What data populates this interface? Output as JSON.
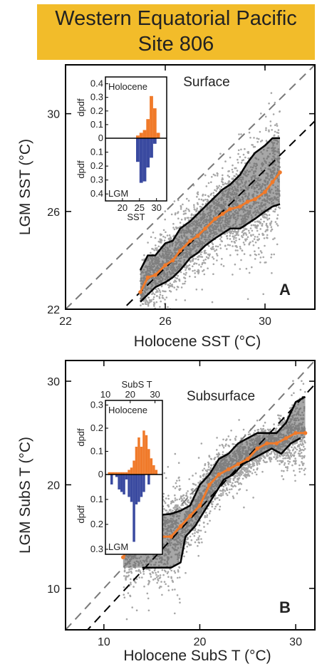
{
  "header": {
    "line1": "Western Equatorial Pacific",
    "line2": "Site 806",
    "color": "#f2bc2a"
  },
  "colors": {
    "scatter": "#a6a6a6",
    "band": "#5f5f5f",
    "median": "#f07a2a",
    "holocene_bars": "#f07a2a",
    "lgm_bars": "#3a4aa0",
    "bounds": "#000000",
    "one_to_one": "#7a7a7a",
    "mean_offset": "#000000"
  },
  "chart_data": [
    {
      "type": "scatter",
      "panel_label": "A",
      "title": "Surface",
      "xlabel": "Holocene SST (°C)",
      "ylabel": "LGM SST (°C)",
      "xlim": [
        22,
        32
      ],
      "ylim": [
        22,
        32
      ],
      "xticks": [
        "22",
        "26",
        "30"
      ],
      "yticks": [
        "22",
        "26",
        "30"
      ],
      "grid": false,
      "reference_lines": {
        "one_to_one": {
          "style": "dashed gray",
          "slope": 1,
          "intercept": 0
        },
        "offset": {
          "style": "dashed black",
          "slope": 1,
          "intercept": -2.3
        }
      },
      "median": {
        "x": [
          25.0,
          25.3,
          25.6,
          26.0,
          26.3,
          26.6,
          27.0,
          27.3,
          27.6,
          28.0,
          28.3,
          28.6,
          29.0,
          29.3,
          29.6,
          30.0,
          30.3,
          30.6
        ],
        "y": [
          22.7,
          23.3,
          23.4,
          23.8,
          24.0,
          24.4,
          24.8,
          25.0,
          25.3,
          25.7,
          25.9,
          26.1,
          26.2,
          26.4,
          26.5,
          26.8,
          27.2,
          27.6
        ]
      },
      "upper_bound": {
        "x": [
          25.0,
          25.3,
          25.6,
          26.0,
          26.3,
          26.6,
          27.0,
          27.3,
          27.6,
          28.0,
          28.3,
          28.6,
          29.0,
          29.3,
          29.6,
          30.0,
          30.3,
          30.6
        ],
        "y": [
          23.6,
          24.2,
          24.2,
          24.7,
          24.8,
          25.3,
          25.6,
          25.9,
          26.2,
          26.6,
          26.9,
          27.1,
          27.5,
          28.0,
          28.4,
          28.7,
          29.0,
          29.0
        ]
      },
      "lower_bound": {
        "x": [
          25.0,
          25.3,
          25.6,
          26.0,
          26.3,
          26.6,
          27.0,
          27.3,
          27.6,
          28.0,
          28.3,
          28.6,
          29.0,
          29.3,
          29.6,
          30.0,
          30.3,
          30.6
        ],
        "y": [
          22.3,
          22.6,
          22.9,
          23.1,
          23.3,
          23.6,
          24.1,
          24.3,
          24.6,
          24.9,
          25.1,
          25.3,
          25.3,
          25.5,
          25.7,
          26.0,
          26.2,
          26.3
        ]
      },
      "inset": {
        "title_top": "Holocene",
        "title_bottom": "LGM",
        "xlabel": "SST",
        "ylabel": "dpdf",
        "xticks": [
          "20",
          "25",
          "30"
        ],
        "yticks_top": [
          "0",
          "0.1",
          "0.2",
          "0.3",
          "0.4"
        ],
        "yticks_bottom": [
          "0.1",
          "0.2",
          "0.3",
          "0.4"
        ],
        "xlim": [
          15,
          33
        ],
        "ylim": [
          0,
          0.45
        ],
        "bin_edges": [
          24,
          25,
          26,
          27,
          28,
          29,
          30,
          31
        ],
        "holocene": [
          0.02,
          0.04,
          0.06,
          0.14,
          0.31,
          0.22,
          0.04
        ],
        "lgm": [
          0.17,
          0.32,
          0.31,
          0.21,
          0.14,
          0.04,
          0.0
        ]
      }
    },
    {
      "type": "scatter",
      "panel_label": "B",
      "title": "Subsurface",
      "xlabel": "Holocene SubS T (°C)",
      "ylabel": "LGM SubS T (°C)",
      "xlim": [
        6,
        32
      ],
      "ylim": [
        6,
        32
      ],
      "xticks": [
        "10",
        "20",
        "30"
      ],
      "yticks": [
        "10",
        "20",
        "30"
      ],
      "grid": false,
      "reference_lines": {
        "one_to_one": {
          "style": "dashed gray",
          "slope": 1,
          "intercept": 0
        },
        "offset": {
          "style": "dashed black",
          "slope": 1,
          "intercept": -2.3
        }
      },
      "median": {
        "x": [
          12.0,
          13.0,
          14.0,
          15.0,
          16.0,
          17.0,
          18.0,
          19.0,
          20.0,
          21.0,
          22.0,
          23.0,
          24.0,
          25.0,
          26.0,
          27.0,
          28.0,
          29.0,
          30.0,
          31.0
        ],
        "y": [
          13.0,
          14.5,
          15.0,
          15.0,
          15.0,
          15.0,
          16.0,
          17.0,
          18.0,
          20.0,
          21.0,
          21.5,
          22.0,
          22.5,
          23.5,
          24.0,
          24.0,
          24.5,
          25.0,
          25.0
        ]
      },
      "upper_bound": {
        "x": [
          13.0,
          15.0,
          17.0,
          18.0,
          19.0,
          20.0,
          21.0,
          22.0,
          23.0,
          24.0,
          25.0,
          26.0,
          27.0,
          28.0,
          29.0,
          30.0,
          31.0
        ],
        "y": [
          17.0,
          17.0,
          17.2,
          17.5,
          18.0,
          20.0,
          21.0,
          22.5,
          23.0,
          24.0,
          24.5,
          25.0,
          25.0,
          25.0,
          26.0,
          28.0,
          28.5
        ]
      },
      "lower_bound": {
        "x": [
          14.0,
          16.0,
          17.0,
          18.0,
          18.5,
          19.5,
          20.5,
          21.5,
          22.5,
          23.5,
          24.5,
          25.5,
          26.5,
          27.5,
          28.5,
          29.5,
          30.5
        ],
        "y": [
          12.0,
          12.0,
          12.0,
          12.5,
          15.0,
          16.0,
          17.5,
          19.0,
          20.5,
          21.0,
          22.0,
          22.5,
          23.0,
          23.5,
          23.0,
          24.0,
          24.5
        ]
      },
      "inset": {
        "title_top": "Holocene",
        "title_bottom": "LGM",
        "xlabel": "SubS T",
        "ylabel": "dpdf",
        "xticks": [
          "10",
          "20",
          "30"
        ],
        "yticks_top": [
          "0",
          "0.1",
          "0.2",
          "0.3"
        ],
        "yticks_bottom": [
          "0.1",
          "0.2",
          "0.3"
        ],
        "xlim": [
          10,
          33
        ],
        "ylim": [
          0,
          0.32
        ],
        "bin_edges": [
          11,
          12,
          13,
          14,
          15,
          16,
          17,
          18,
          19,
          20,
          21,
          22,
          23,
          24,
          25,
          26,
          27,
          28,
          29,
          30,
          31
        ],
        "holocene": [
          0.01,
          0.01,
          0.01,
          0.01,
          0.01,
          0.01,
          0.01,
          0.01,
          0.02,
          0.03,
          0.06,
          0.12,
          0.16,
          0.12,
          0.19,
          0.17,
          0.11,
          0.07,
          0.04,
          0.02
        ],
        "lgm": [
          0.0,
          0.04,
          0.0,
          0.01,
          0.06,
          0.07,
          0.08,
          0.02,
          0.09,
          0.11,
          0.27,
          0.12,
          0.11,
          0.09,
          0.07,
          0.0,
          0.04,
          0.0,
          0.0,
          0.0
        ]
      }
    }
  ]
}
